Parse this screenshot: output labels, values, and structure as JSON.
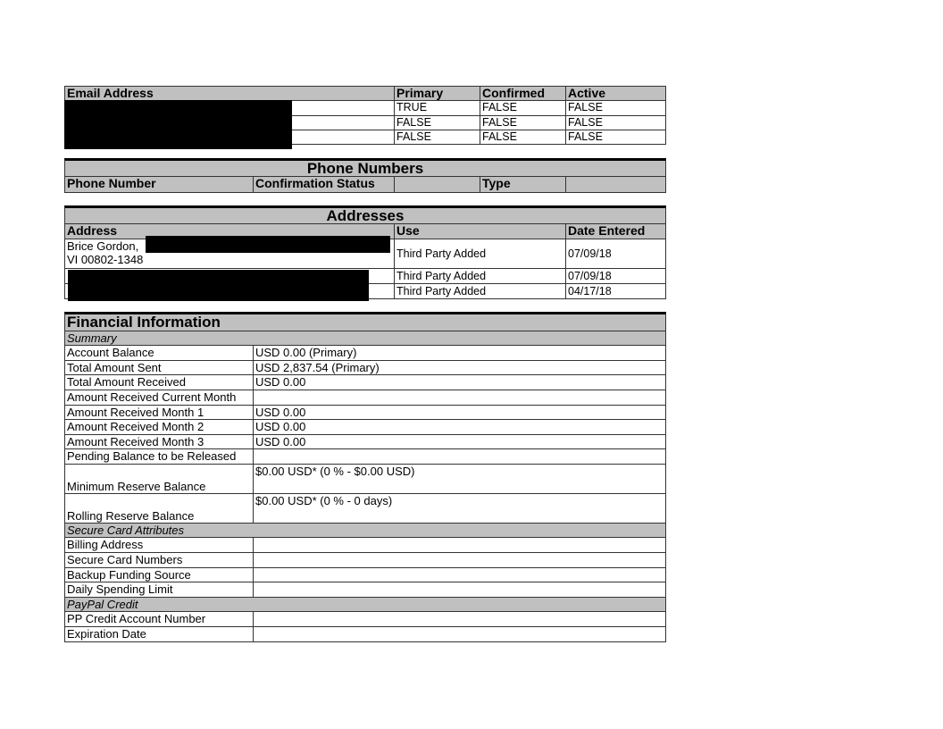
{
  "email": {
    "headers": [
      "Email Address",
      "Primary",
      "Confirmed",
      "Active"
    ],
    "rows": [
      [
        "TRUE",
        "FALSE",
        "FALSE"
      ],
      [
        "FALSE",
        "FALSE",
        "FALSE"
      ],
      [
        "FALSE",
        "FALSE",
        "FALSE"
      ]
    ]
  },
  "phone": {
    "title": "Phone Numbers",
    "headers": [
      "Phone Number",
      "Confirmation Status",
      "Type"
    ]
  },
  "addresses": {
    "title": "Addresses",
    "headers": [
      "Address",
      "Use",
      "Date Entered"
    ],
    "rows": [
      {
        "address_line1": "Brice Gordon,",
        "address_line2": "VI 00802-1348",
        "use": "Third Party Added",
        "date": "07/09/18"
      },
      {
        "address_line1": "",
        "address_line2": "",
        "use": "Third Party Added",
        "date": "07/09/18"
      },
      {
        "address_line1": "",
        "address_line2": "",
        "use": "Third Party Added",
        "date": "04/17/18"
      }
    ]
  },
  "financial": {
    "title": "Financial Information",
    "sections": [
      {
        "name": "Summary",
        "rows": [
          [
            "Account Balance",
            "USD 0.00 (Primary)"
          ],
          [
            "Total Amount Sent",
            "USD 2,837.54 (Primary)"
          ],
          [
            "Total Amount Received",
            "USD 0.00"
          ],
          [
            "Amount Received Current Month",
            ""
          ],
          [
            "Amount Received Month 1",
            "USD 0.00"
          ],
          [
            "Amount Received Month 2",
            "USD 0.00"
          ],
          [
            "Amount Received Month 3",
            "USD 0.00"
          ],
          [
            "Pending Balance to be Released",
            ""
          ],
          [
            "Minimum Reserve Balance",
            "$0.00 USD* (0 % - $0.00 USD)"
          ],
          [
            "Rolling Reserve Balance",
            "$0.00 USD* (0 % - 0 days)"
          ]
        ]
      },
      {
        "name": "Secure Card Attributes",
        "rows": [
          [
            "Billing Address",
            ""
          ],
          [
            "Secure Card Numbers",
            ""
          ],
          [
            "Backup Funding Source",
            ""
          ],
          [
            "Daily Spending Limit",
            ""
          ]
        ]
      },
      {
        "name": "PayPal Credit",
        "rows": [
          [
            "PP Credit Account Number",
            ""
          ],
          [
            "Expiration Date",
            ""
          ]
        ]
      }
    ]
  }
}
